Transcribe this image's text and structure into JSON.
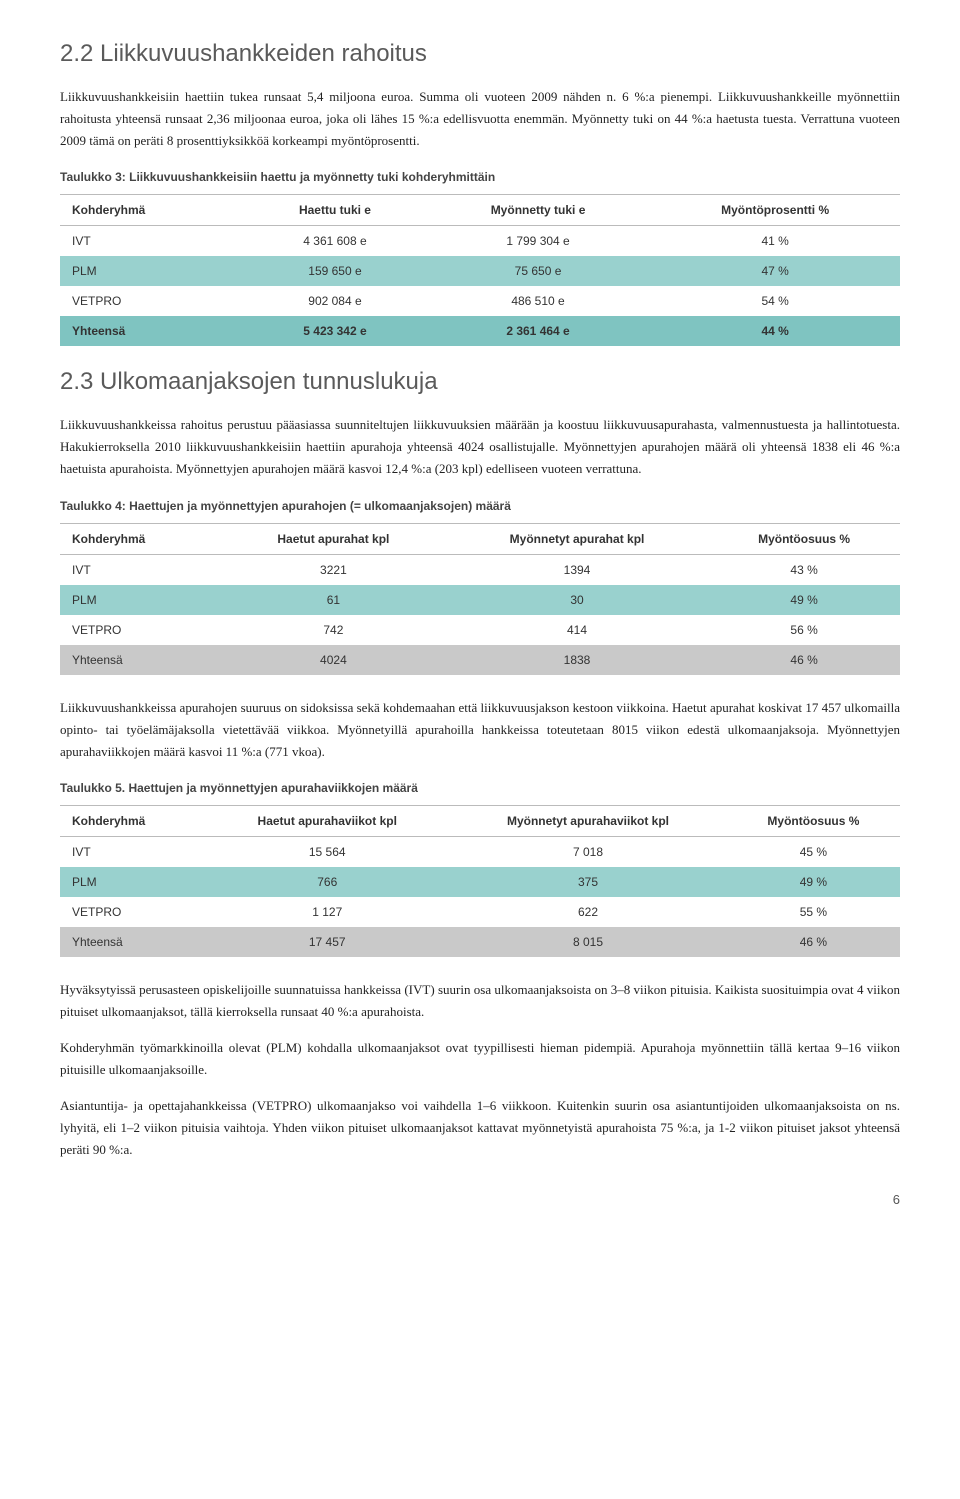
{
  "section1": {
    "heading": "2.2 Liikkuvuushankkeiden rahoitus",
    "p1": "Liikkuvuushankkeisiin haettiin tukea runsaat 5,4 miljoona euroa. Summa oli vuoteen 2009 nähden n. 6 %:a pienempi. Liikkuvuushankkeille myönnettiin rahoitusta yhteensä runsaat 2,36 miljoonaa euroa, joka oli lähes 15 %:a edellisvuotta enemmän. Myönnetty tuki on 44 %:a haetusta tuesta. Verrattuna vuoteen 2009 tämä on peräti 8 prosenttiyksikköä korkeampi myöntöprosentti."
  },
  "table3": {
    "caption": "Taulukko 3: Liikkuvuushankkeisiin haettu ja myönnetty tuki kohderyhmittäin",
    "headers": [
      "Kohderyhmä",
      "Haettu tuki e",
      "Myönnetty tuki e",
      "Myöntöprosentti %"
    ],
    "rows": [
      {
        "style": "plain",
        "cells": [
          "IVT",
          "4 361 608 e",
          "1 799 304 e",
          "41 %"
        ]
      },
      {
        "style": "teal",
        "cells": [
          "PLM",
          "159 650 e",
          "75 650 e",
          "47 %"
        ]
      },
      {
        "style": "plain",
        "cells": [
          "VETPRO",
          "902 084 e",
          "486 510 e",
          "54 %"
        ]
      },
      {
        "style": "teal-dark",
        "cells": [
          "Yhteensä",
          "5 423 342 e",
          "2 361 464 e",
          "44 %"
        ]
      }
    ]
  },
  "section2": {
    "heading": "2.3 Ulkomaanjaksojen tunnuslukuja",
    "p1": "Liikkuvuushankkeissa rahoitus perustuu pääasiassa suunniteltujen liikkuvuuksien määrään ja koostuu liikkuvuusapurahasta, valmennustuesta ja hallintotuesta. Hakukierroksella 2010 liikkuvuushankkeisiin haettiin apurahoja yhteensä 4024 osallistujalle. Myönnettyjen apurahojen määrä oli yhteensä 1838 eli 46 %:a haetuista apurahoista. Myönnettyjen apurahojen määrä kasvoi 12,4 %:a (203 kpl) edelliseen vuoteen verrattuna."
  },
  "table4": {
    "caption": "Taulukko 4: Haettujen ja myönnettyjen apurahojen (= ulkomaanjaksojen) määrä",
    "headers": [
      "Kohderyhmä",
      "Haetut apurahat kpl",
      "Myönnetyt apurahat kpl",
      "Myöntöosuus %"
    ],
    "rows": [
      {
        "style": "plain",
        "cells": [
          "IVT",
          "3221",
          "1394",
          "43 %"
        ]
      },
      {
        "style": "teal",
        "cells": [
          "PLM",
          "61",
          "30",
          "49 %"
        ]
      },
      {
        "style": "plain",
        "cells": [
          "VETPRO",
          "742",
          "414",
          "56 %"
        ]
      },
      {
        "style": "gray",
        "cells": [
          "Yhteensä",
          "4024",
          "1838",
          "46 %"
        ]
      }
    ]
  },
  "midtext": {
    "p1": "Liikkuvuushankkeissa apurahojen suuruus on sidoksissa sekä kohdemaahan että liikkuvuusjakson kestoon viikkoina. Haetut apurahat koskivat 17 457 ulkomailla opinto- tai työelämäjaksolla vietettävää viikkoa. Myönnetyillä apurahoilla hankkeissa toteutetaan 8015 viikon edestä ulkomaanjaksoja. Myönnettyjen apurahaviikkojen määrä kasvoi 11 %:a (771 vkoa)."
  },
  "table5": {
    "caption": "Taulukko 5. Haettujen ja myönnettyjen apurahaviikkojen määrä",
    "headers": [
      "Kohderyhmä",
      "Haetut apurahaviikot kpl",
      "Myönnetyt apurahaviikot kpl",
      "Myöntöosuus %"
    ],
    "rows": [
      {
        "style": "plain",
        "cells": [
          "IVT",
          "15 564",
          "7 018",
          "45 %"
        ]
      },
      {
        "style": "teal",
        "cells": [
          "PLM",
          "766",
          "375",
          "49 %"
        ]
      },
      {
        "style": "plain",
        "cells": [
          "VETPRO",
          "1 127",
          "622",
          "55 %"
        ]
      },
      {
        "style": "gray",
        "cells": [
          "Yhteensä",
          "17 457",
          "8 015",
          "46 %"
        ]
      }
    ]
  },
  "bottom": {
    "p1": "Hyväksytyissä perusasteen opiskelijoille suunnatuissa hankkeissa (IVT) suurin osa ulkomaanjaksoista on 3–8 viikon pituisia. Kaikista suosituimpia ovat 4 viikon pituiset ulkomaanjaksot, tällä kierroksella runsaat 40 %:a apurahoista.",
    "p2": "Kohderyhmän työmarkkinoilla olevat (PLM) kohdalla ulkomaanjaksot ovat tyypillisesti hieman pidempiä. Apurahoja myönnettiin tällä kertaa 9–16 viikon pituisille ulkomaanjaksoille.",
    "p3": "Asiantuntija- ja opettajahankkeissa (VETPRO) ulkomaanjakso voi vaihdella 1–6 viikkoon. Kuitenkin suurin osa asiantuntijoiden ulkomaanjaksoista on ns. lyhyitä, eli 1–2 viikon pituisia vaihtoja. Yhden viikon pituiset ulkomaanjaksot kattavat myönnetyistä apurahoista 75 %:a, ja 1-2 viikon pituiset jaksot yhteensä peräti 90 %:a."
  },
  "pagenum": "6",
  "colors": {
    "teal": "#99d1ce",
    "teal_dark": "#7fc4c1",
    "gray": "#c9c9c9",
    "text": "#333333",
    "bg": "#ffffff"
  }
}
